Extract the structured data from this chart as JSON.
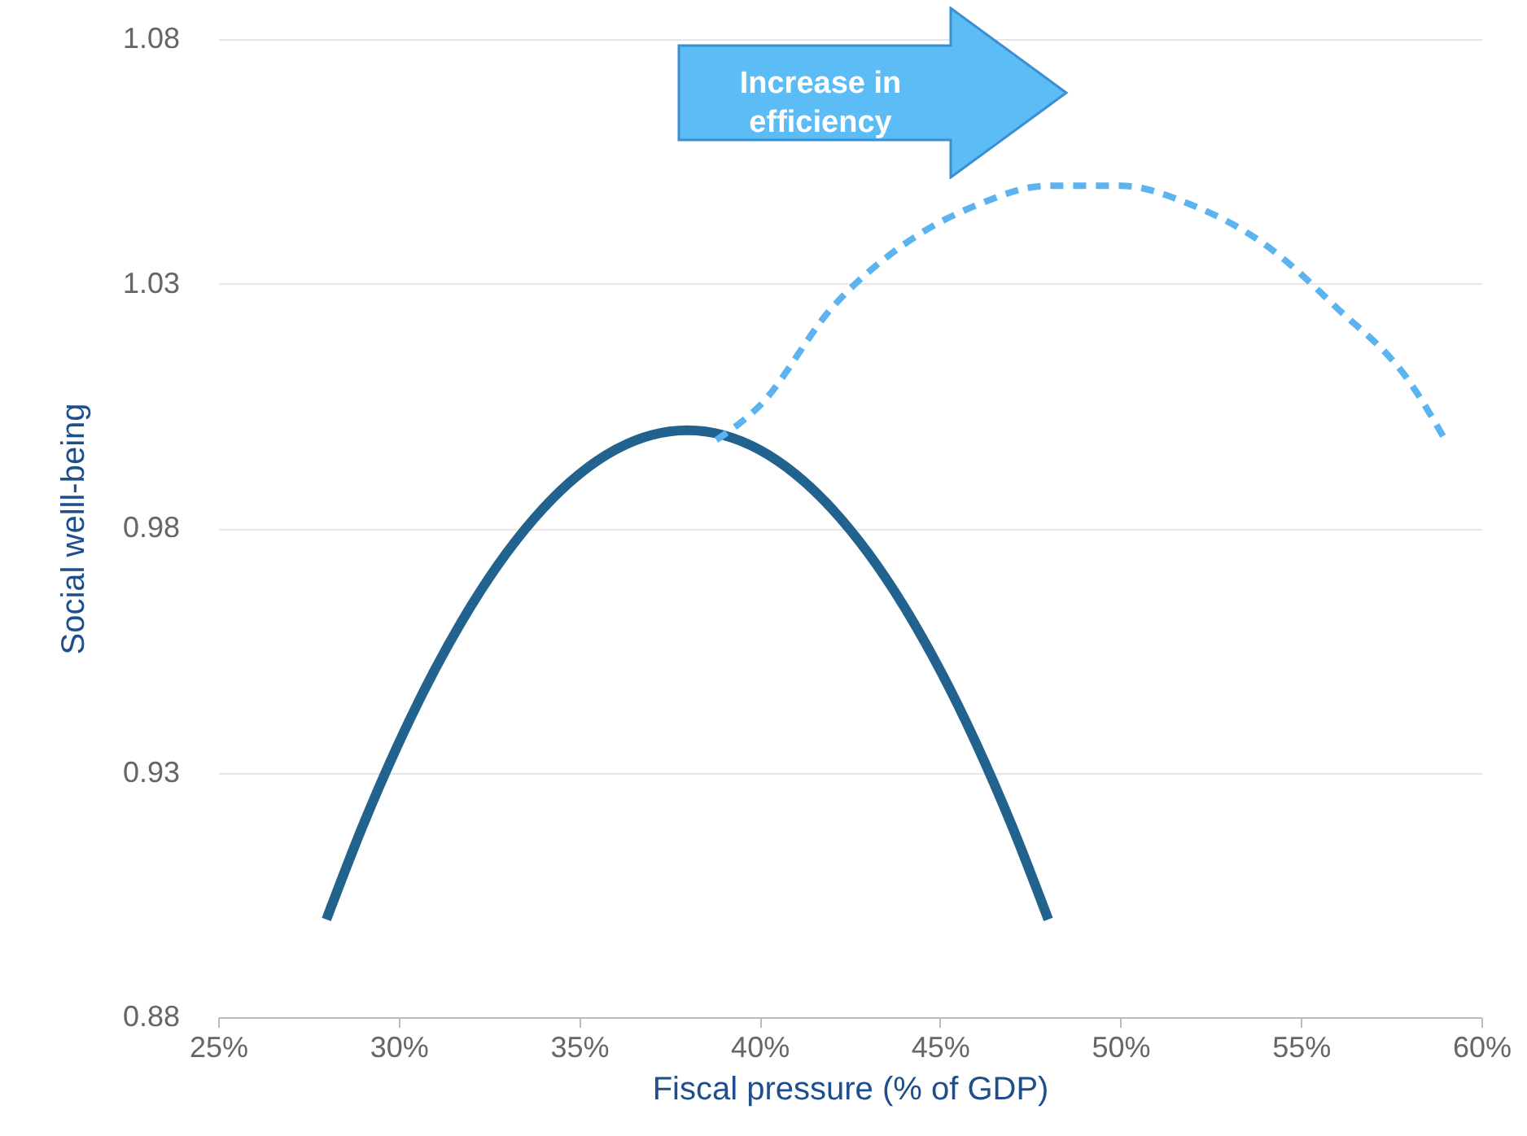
{
  "chart_data": {
    "type": "line",
    "xlabel": "Fiscal pressure (% of GDP)",
    "ylabel": "Social welll-being",
    "xlim": [
      25,
      60
    ],
    "xticks": [
      {
        "value": 25,
        "label": "25%"
      },
      {
        "value": 30,
        "label": "30%"
      },
      {
        "value": 35,
        "label": "35%"
      },
      {
        "value": 40,
        "label": "40%"
      },
      {
        "value": 45,
        "label": "45%"
      },
      {
        "value": 50,
        "label": "50%"
      },
      {
        "value": 55,
        "label": "55%"
      },
      {
        "value": 60,
        "label": "60%"
      }
    ],
    "ylim": [
      0.88,
      1.08
    ],
    "yticks": [
      0.88,
      0.93,
      0.98,
      1.03,
      1.08
    ],
    "grid": "y",
    "marker": "none",
    "annotations": [
      "Increase in efficiency"
    ],
    "series": [
      {
        "color": "#22628f",
        "line_style": "solid",
        "x": [
          28,
          29,
          30,
          31,
          32,
          33,
          34,
          35,
          36,
          37,
          38,
          39,
          40,
          41,
          42,
          43,
          44,
          45,
          46,
          47,
          48
        ],
        "values": [
          0.9,
          0.919,
          0.936,
          0.951,
          0.964,
          0.975,
          0.984,
          0.991,
          0.996,
          0.999,
          1.0,
          0.999,
          0.996,
          0.991,
          0.984,
          0.975,
          0.964,
          0.951,
          0.936,
          0.919,
          0.9
        ]
      },
      {
        "color": "#5cb3f0",
        "line_style": "dashed",
        "x": [
          38.8,
          40,
          42,
          44,
          46,
          48,
          49,
          50,
          52,
          54,
          56,
          58,
          59
        ],
        "values": [
          0.998,
          1.005,
          1.025,
          1.038,
          1.046,
          1.05,
          1.05,
          1.05,
          1.046,
          1.038,
          1.025,
          1.01,
          0.998
        ]
      }
    ]
  }
}
